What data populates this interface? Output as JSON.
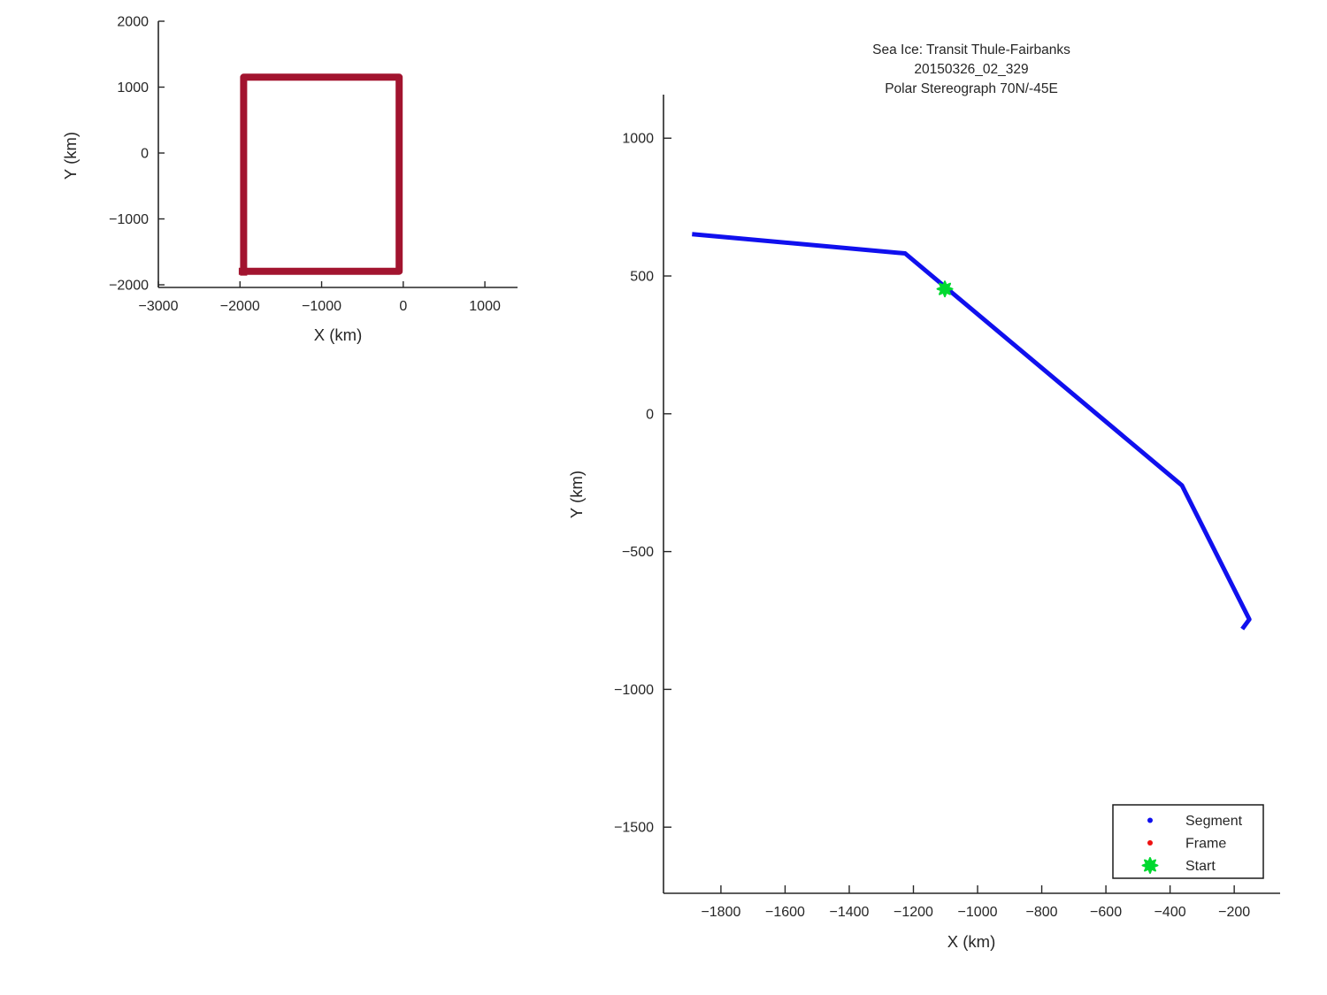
{
  "figure": {
    "background": "#ffffff",
    "axis_color": "#262626",
    "text_color": "#262626"
  },
  "chart_data": [
    {
      "id": "overview",
      "type": "line",
      "title": "",
      "xlabel": "X (km)",
      "ylabel": "Y (km)",
      "xlim": [
        -3000,
        1400
      ],
      "ylim": [
        -2040,
        2000
      ],
      "xticks": [
        -3000,
        -2000,
        -1000,
        0,
        1000
      ],
      "yticks": [
        -2000,
        -1000,
        0,
        1000,
        2000
      ],
      "grid": false,
      "legend_position": "none",
      "series": [
        {
          "name": "coverage-box",
          "color": "#A2142F",
          "line_width": 8,
          "x": [
            -1955,
            -1955,
            -50,
            -50,
            -2015
          ],
          "y": [
            -1860,
            1150,
            1150,
            -1795,
            -1795
          ]
        }
      ]
    },
    {
      "id": "transit",
      "type": "line",
      "title_lines": [
        "Sea Ice: Transit Thule-Fairbanks",
        "20150326_02_329",
        "Polar Stereograph 70N/-45E"
      ],
      "xlabel": "X (km)",
      "ylabel": "Y (km)",
      "xlim": [
        -1979,
        -57
      ],
      "ylim": [
        -1740,
        1158
      ],
      "xticks": [
        -1800,
        -1600,
        -1400,
        -1200,
        -1000,
        -800,
        -600,
        -400,
        -200
      ],
      "yticks": [
        -1500,
        -1000,
        -500,
        0,
        500,
        1000
      ],
      "grid": false,
      "legend_position": "bottom-right",
      "series": [
        {
          "name": "segment-track",
          "color": "#1010EE",
          "line_width": 5,
          "x": [
            -1890,
            -1226,
            -363,
            -153,
            -175
          ],
          "y": [
            652,
            582,
            -260,
            -746,
            -781
          ]
        }
      ],
      "markers": [
        {
          "name": "start-marker",
          "shape": "star",
          "color": "#00D930",
          "x": -1102,
          "y": 453,
          "size": 8.5
        }
      ],
      "legend": {
        "items": [
          {
            "label": "Segment",
            "marker": "dot",
            "color": "#1010EE"
          },
          {
            "label": "Frame",
            "marker": "dot",
            "color": "#EE1111"
          },
          {
            "label": "Start",
            "marker": "star",
            "color": "#00D930"
          }
        ]
      }
    }
  ]
}
